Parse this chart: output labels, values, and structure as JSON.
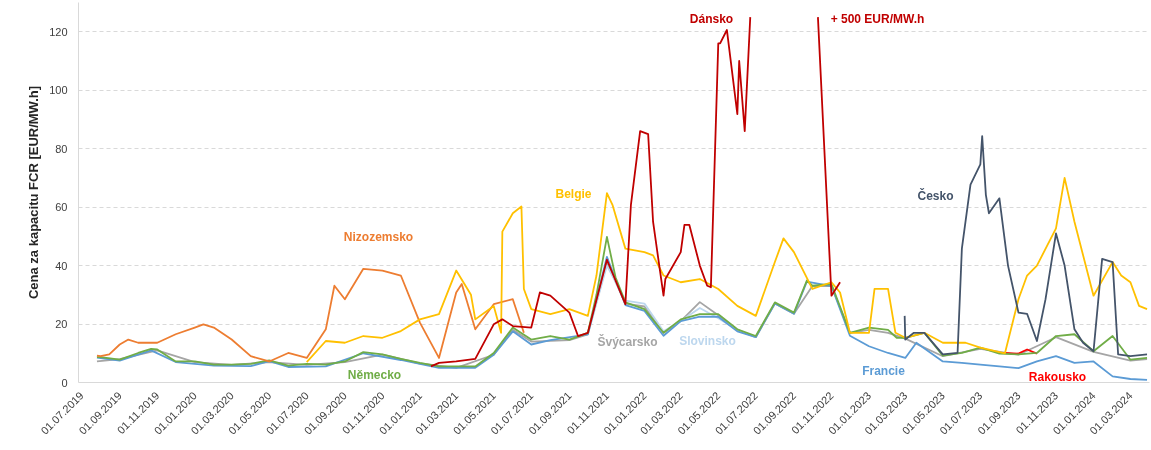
{
  "chart_data": {
    "type": "line",
    "ylabel": "Cena za kapacitu FCR [EUR/MW.h]",
    "xlim": [
      "2019-06-26",
      "2024-04-01"
    ],
    "ylim": [
      0,
      130
    ],
    "yticks": [
      0,
      20,
      40,
      60,
      80,
      100,
      120
    ],
    "xticks": [
      {
        "value": "2019-07-01",
        "label": "01.07.2019"
      },
      {
        "value": "2019-09-01",
        "label": "01.09.2019"
      },
      {
        "value": "2019-11-01",
        "label": "01.11.2019"
      },
      {
        "value": "2020-01-01",
        "label": "01.01.2020"
      },
      {
        "value": "2020-03-01",
        "label": "01.03.2020"
      },
      {
        "value": "2020-05-01",
        "label": "01.05.2020"
      },
      {
        "value": "2020-07-01",
        "label": "01.07.2020"
      },
      {
        "value": "2020-09-01",
        "label": "01.09.2020"
      },
      {
        "value": "2020-11-01",
        "label": "01.11.2020"
      },
      {
        "value": "2021-01-01",
        "label": "01.01.2021"
      },
      {
        "value": "2021-03-01",
        "label": "01.03.2021"
      },
      {
        "value": "2021-05-01",
        "label": "01.05.2021"
      },
      {
        "value": "2021-07-01",
        "label": "01.07.2021"
      },
      {
        "value": "2021-09-01",
        "label": "01.09.2021"
      },
      {
        "value": "2021-11-01",
        "label": "01.11.2021"
      },
      {
        "value": "2022-01-01",
        "label": "01.01.2022"
      },
      {
        "value": "2022-03-01",
        "label": "01.03.2022"
      },
      {
        "value": "2022-05-01",
        "label": "01.05.2022"
      },
      {
        "value": "2022-07-01",
        "label": "01.07.2022"
      },
      {
        "value": "2022-09-01",
        "label": "01.09.2022"
      },
      {
        "value": "2022-11-01",
        "label": "01.11.2022"
      },
      {
        "value": "2023-01-01",
        "label": "01.01.2023"
      },
      {
        "value": "2023-03-01",
        "label": "01.03.2023"
      },
      {
        "value": "2023-05-01",
        "label": "01.05.2023"
      },
      {
        "value": "2023-07-01",
        "label": "01.07.2023"
      },
      {
        "value": "2023-09-01",
        "label": "01.09.2023"
      },
      {
        "value": "2023-11-01",
        "label": "01.11.2023"
      },
      {
        "value": "2024-01-01",
        "label": "01.01.2024"
      },
      {
        "value": "2024-03-01",
        "label": "01.03.2024"
      }
    ],
    "grid": "y",
    "annotations": [
      "+ 500 EUR/MW.h"
    ],
    "series": [
      {
        "name": "Švýcarsko",
        "color": "#a5a5a5",
        "x": [
          "2019-07-26",
          "2019-09-01",
          "2019-11-01",
          "2020-01-01",
          "2020-03-01",
          "2020-05-01",
          "2020-07-01",
          "2020-09-01",
          "2020-11-01",
          "2021-01-01",
          "2021-03-01",
          "2021-05-01",
          "2021-06-01",
          "2021-07-01",
          "2021-09-01",
          "2021-10-01",
          "2021-11-01",
          "2021-12-01",
          "2022-01-01",
          "2022-02-01",
          "2022-03-01",
          "2022-04-01",
          "2022-05-01",
          "2022-06-01",
          "2022-07-01",
          "2022-08-01",
          "2022-09-01",
          "2022-10-01",
          "2022-11-01",
          "2022-12-01",
          "2023-01-01",
          "2023-02-01",
          "2023-03-01",
          "2023-05-01",
          "2023-07-01",
          "2023-09-01",
          "2023-11-01",
          "2024-01-01",
          "2024-03-01",
          "2024-03-28"
        ],
        "values": [
          7.2,
          8,
          11,
          7,
          6,
          7,
          6,
          7,
          9.5,
          6.5,
          5,
          9.5,
          18,
          14,
          14.5,
          16.5,
          41,
          27,
          26,
          17,
          21,
          27.5,
          23,
          18,
          15.5,
          27,
          23.5,
          33,
          33,
          17,
          18,
          17,
          15,
          9,
          11.5,
          9.5,
          15.5,
          10.5,
          7.5,
          8
        ]
      },
      {
        "name": "Slovinsko",
        "color": "#bdd7ee",
        "x": [
          "2021-10-01",
          "2021-11-01",
          "2021-12-01",
          "2022-01-01",
          "2022-02-01",
          "2022-03-01",
          "2022-04-01",
          "2022-05-01",
          "2022-06-01",
          "2022-07-01"
        ],
        "values": [
          16.5,
          40,
          28,
          27,
          17.5,
          21,
          25.5,
          22,
          18,
          15.5
        ]
      },
      {
        "name": "Francie",
        "color": "#5b9bd5",
        "x": [
          "2019-07-26",
          "2019-09-01",
          "2019-10-22",
          "2019-12-01",
          "2020-02-01",
          "2020-04-01",
          "2020-05-01",
          "2020-06-01",
          "2020-08-01",
          "2020-10-01",
          "2020-12-01",
          "2021-02-01",
          "2021-04-01",
          "2021-05-01",
          "2021-06-01",
          "2021-07-01",
          "2021-08-01",
          "2021-10-01",
          "2021-11-01",
          "2021-12-01",
          "2022-01-01",
          "2022-02-01",
          "2022-03-01",
          "2022-04-01",
          "2022-05-01",
          "2022-06-01",
          "2022-07-01",
          "2022-08-01",
          "2022-09-01",
          "2022-09-22",
          "2022-11-01",
          "2022-12-01",
          "2023-01-01",
          "2023-02-01",
          "2023-03-01",
          "2023-03-19",
          "2023-05-01",
          "2023-06-01",
          "2023-07-01",
          "2023-08-01",
          "2023-09-01",
          "2023-10-01",
          "2023-11-01",
          "2023-12-01",
          "2024-01-01",
          "2024-02-01",
          "2024-03-01",
          "2024-03-28"
        ],
        "values": [
          8.5,
          7.5,
          11,
          7,
          5.8,
          5.6,
          7.3,
          5.3,
          5.5,
          10,
          7.7,
          5,
          5,
          9.5,
          17.5,
          13,
          14.5,
          16.5,
          43,
          26.5,
          24.5,
          16,
          21,
          22.5,
          22.5,
          17.5,
          15.5,
          27,
          23.5,
          34.5,
          33,
          16,
          12.4,
          10.1,
          8.4,
          13.6,
          7.2,
          6.7,
          6.1,
          5.5,
          4.9,
          7.2,
          9,
          6.7,
          7.2,
          2.1,
          1.2,
          0.9
        ]
      },
      {
        "name": "Rakousko",
        "color": "#ff0000",
        "x": [
          "2023-08-07",
          "2023-09-01",
          "2023-09-15",
          "2023-10-01"
        ],
        "values": [
          10.1,
          9.9,
          11.3,
          9.9
        ]
      },
      {
        "name": "Německo",
        "color": "#70ad47",
        "x": [
          "2019-07-26",
          "2019-08-01",
          "2019-09-01",
          "2019-10-01",
          "2019-10-22",
          "2019-11-01",
          "2019-12-01",
          "2020-01-01",
          "2020-02-01",
          "2020-03-01",
          "2020-04-01",
          "2020-05-01",
          "2020-06-01",
          "2020-07-01",
          "2020-08-01",
          "2020-09-01",
          "2020-10-01",
          "2020-11-01",
          "2020-12-01",
          "2021-01-01",
          "2021-02-01",
          "2021-03-01",
          "2021-04-01",
          "2021-05-01",
          "2021-06-01",
          "2021-07-01",
          "2021-08-01",
          "2021-09-01",
          "2021-10-01",
          "2021-10-15",
          "2021-11-01",
          "2021-11-15",
          "2021-12-01",
          "2022-01-01",
          "2022-02-01",
          "2022-03-01",
          "2022-04-01",
          "2022-05-01",
          "2022-06-01",
          "2022-07-01",
          "2022-08-01",
          "2022-09-01",
          "2022-09-22",
          "2022-10-01",
          "2022-11-01",
          "2022-12-01",
          "2023-01-01",
          "2023-02-01",
          "2023-02-15",
          "2023-03-01",
          "2023-04-01",
          "2023-05-01",
          "2023-06-01",
          "2023-07-01",
          "2023-08-01",
          "2023-09-01",
          "2023-10-01",
          "2023-11-01",
          "2023-12-01",
          "2024-01-01",
          "2024-02-01",
          "2024-03-01",
          "2024-03-28"
        ],
        "values": [
          8.7,
          8.7,
          7.8,
          10.1,
          11.5,
          11.3,
          7.2,
          7.2,
          6.1,
          6.1,
          6.4,
          7.6,
          5.8,
          6.4,
          6.1,
          7.2,
          10.4,
          9.6,
          8.1,
          6.7,
          5.5,
          5.5,
          5.5,
          10.1,
          18.8,
          14.7,
          15.9,
          14.7,
          17,
          30,
          49.8,
          36,
          27.4,
          25.1,
          17,
          21.6,
          23.4,
          23.4,
          18.2,
          15.9,
          27.4,
          23.9,
          34.9,
          33.1,
          33.7,
          17,
          18.8,
          18,
          15.3,
          15.3,
          17,
          9.2,
          10.1,
          11.9,
          9.9,
          9.6,
          10.1,
          15.9,
          16.5,
          10.7,
          15.9,
          7.8,
          8.4
        ]
      },
      {
        "name": "Nizozemsko",
        "color": "#ed7d31",
        "x": [
          "2019-07-26",
          "2019-08-01",
          "2019-08-15",
          "2019-09-01",
          "2019-09-15",
          "2019-10-01",
          "2019-11-01",
          "2019-12-01",
          "2020-01-01",
          "2020-01-15",
          "2020-02-01",
          "2020-03-01",
          "2020-04-01",
          "2020-05-01",
          "2020-06-01",
          "2020-07-01",
          "2020-08-01",
          "2020-08-15",
          "2020-09-01",
          "2020-10-01",
          "2020-11-01",
          "2020-12-01",
          "2021-01-01",
          "2021-02-01",
          "2021-03-01",
          "2021-03-10",
          "2021-04-01",
          "2021-05-01",
          "2021-06-01",
          "2021-06-19"
        ],
        "values": [
          9.2,
          9,
          9.6,
          13,
          14.7,
          13.6,
          13.6,
          16.5,
          18.8,
          19.9,
          18.8,
          14.7,
          9,
          7.2,
          10.1,
          8.4,
          18.2,
          33.1,
          28.5,
          38.9,
          38.3,
          36.6,
          20.5,
          8.4,
          30.8,
          33.7,
          18.2,
          26.8,
          28.5,
          17
        ]
      },
      {
        "name": "Belgie",
        "color": "#ffc000",
        "x": [
          "2020-07-01",
          "2020-08-01",
          "2020-09-01",
          "2020-10-01",
          "2020-11-01",
          "2020-12-01",
          "2021-01-01",
          "2021-02-01",
          "2021-03-01",
          "2021-03-25",
          "2021-04-01",
          "2021-05-01",
          "2021-05-13",
          "2021-05-15",
          "2021-06-01",
          "2021-06-15",
          "2021-06-19",
          "2021-07-01",
          "2021-08-01",
          "2021-09-01",
          "2021-10-01",
          "2021-10-15",
          "2021-11-01",
          "2021-11-10",
          "2021-12-01",
          "2022-01-01",
          "2022-01-15",
          "2022-02-01",
          "2022-03-01",
          "2022-04-01",
          "2022-05-01",
          "2022-06-01",
          "2022-07-01",
          "2022-08-01",
          "2022-08-15",
          "2022-09-01",
          "2022-10-01",
          "2022-11-01",
          "2022-11-15",
          "2022-12-01",
          "2023-01-01",
          "2023-01-10",
          "2023-02-01",
          "2023-02-13",
          "2023-03-01",
          "2023-04-01",
          "2023-05-01",
          "2023-06-07",
          "2023-07-01",
          "2023-08-10",
          "2023-09-01",
          "2023-09-15",
          "2023-10-01",
          "2023-11-01",
          "2023-11-15",
          "2023-12-01",
          "2024-01-01",
          "2024-02-01",
          "2024-02-15",
          "2024-03-01",
          "2024-03-15",
          "2024-03-28"
        ],
        "values": [
          7,
          14.2,
          13.6,
          15.9,
          15.3,
          17.6,
          21.6,
          23.4,
          38.3,
          30,
          21.6,
          26.2,
          17,
          51.6,
          57.9,
          60.2,
          32,
          25.1,
          23.4,
          25.1,
          22.8,
          36.6,
          64.8,
          60.8,
          45.8,
          44.6,
          43.5,
          36.6,
          34.3,
          35.4,
          32,
          26.2,
          22.8,
          41.2,
          49.3,
          44.6,
          32,
          34.3,
          30.8,
          17,
          17,
          32,
          32,
          17,
          15.3,
          17,
          13.6,
          13.6,
          11.9,
          10,
          28.5,
          36.6,
          40,
          52.7,
          70,
          55,
          29.7,
          41.2,
          36.6,
          34.3,
          26.2,
          25.1
        ]
      },
      {
        "name": "Dánsko",
        "color": "#c00000",
        "x": [
          "2021-01-19",
          "2021-02-01",
          "2021-03-01",
          "2021-04-01",
          "2021-05-01",
          "2021-05-15",
          "2021-06-01",
          "2021-07-01",
          "2021-07-15",
          "2021-08-01",
          "2021-09-01",
          "2021-09-15",
          "2021-10-01",
          "2021-11-01",
          "2021-12-01",
          "2021-12-10",
          "2021-12-25",
          "2022-01-07",
          "2022-01-15",
          "2022-02-01",
          "2022-02-04",
          "2022-03-01",
          "2022-03-07",
          "2022-03-15",
          "2022-04-01",
          "2022-04-13",
          "2022-04-19",
          "2022-05-01",
          "2022-05-04",
          "2022-05-15",
          "2022-06-01",
          "2022-06-04",
          "2022-06-13",
          "2022-06-22",
          "2022-10-04",
          "2022-10-10",
          "2022-11-01",
          "2022-11-15"
        ],
        "values": [
          5.5,
          6.7,
          7.2,
          8.1,
          19.9,
          21.6,
          19.3,
          18.8,
          30.8,
          29.7,
          23.9,
          15.9,
          17,
          42,
          26.8,
          60.8,
          86,
          85,
          55,
          29.7,
          35.4,
          44.6,
          53.9,
          53.9,
          40,
          33.1,
          32.6,
          116,
          116,
          120.6,
          91.8,
          110,
          86,
          125,
          null,
          125,
          29.7,
          34.3
        ]
      },
      {
        "name": "Česko",
        "color": "#44546a",
        "x": [
          "2023-02-28",
          "2023-03-01",
          "2023-03-15",
          "2023-04-01",
          "2023-05-01",
          "2023-05-25",
          "2023-06-01",
          "2023-06-15",
          "2023-07-01",
          "2023-07-04",
          "2023-07-10",
          "2023-07-15",
          "2023-08-01",
          "2023-08-15",
          "2023-09-01",
          "2023-09-15",
          "2023-10-01",
          "2023-10-15",
          "2023-11-01",
          "2023-11-15",
          "2023-12-01",
          "2023-12-15",
          "2024-01-01",
          "2024-01-15",
          "2024-02-01",
          "2024-02-10",
          "2024-03-01",
          "2024-03-28"
        ],
        "values": [
          22.8,
          14.7,
          17,
          17,
          9.6,
          10.1,
          45.8,
          67.7,
          74.6,
          84.3,
          64.2,
          57.9,
          63,
          40,
          23.9,
          23.5,
          14.2,
          28.5,
          51,
          40,
          18.2,
          13.6,
          10.7,
          42.3,
          41.2,
          9.6,
          9,
          9.6
        ]
      }
    ]
  }
}
